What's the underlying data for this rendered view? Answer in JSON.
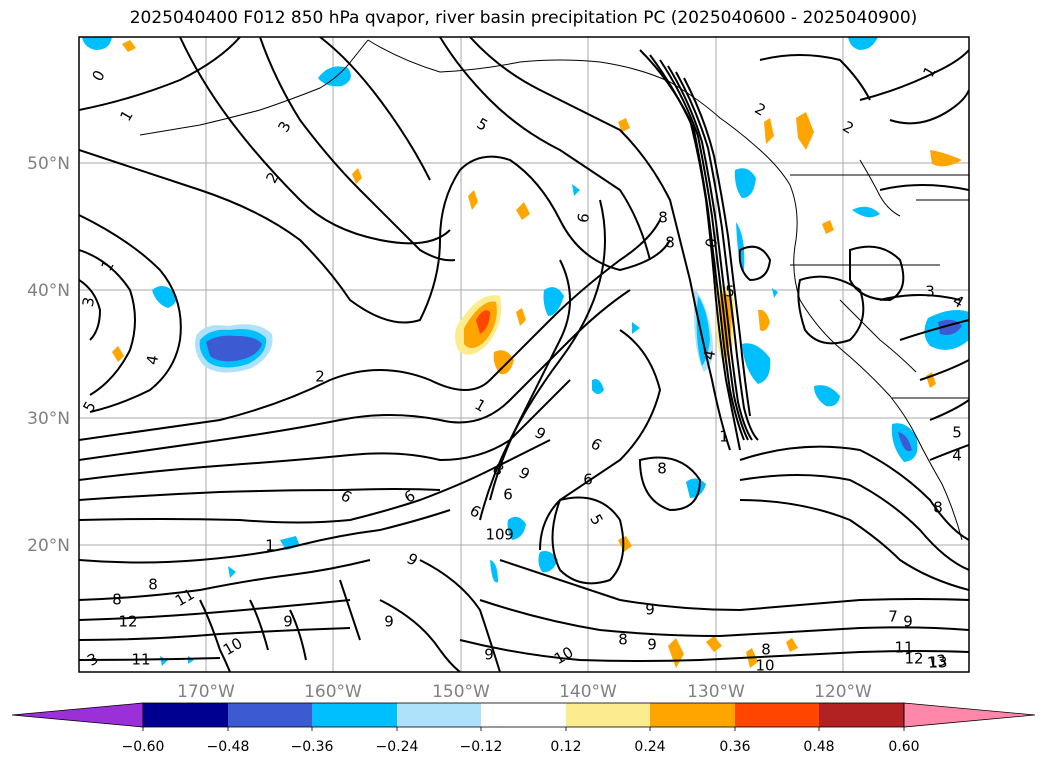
{
  "title": "2025040400 F012 850 hPa qvapor, river basin precipitation PC (2025040600 - 2025040900)",
  "map": {
    "lat_labels": [
      "50°N",
      "40°N",
      "30°N",
      "20°N"
    ],
    "lon_labels": [
      "170°W",
      "160°W",
      "150°W",
      "140°W",
      "130°W",
      "120°W"
    ],
    "contour_labels": [
      "0",
      "1",
      "3",
      "2",
      "5",
      "6",
      "8",
      "8",
      "0",
      "2",
      "2",
      "1",
      "1",
      "3",
      "4",
      "5",
      "2",
      "1",
      "4",
      "5",
      "3",
      "4",
      "8",
      "6",
      "6",
      "8",
      "5",
      "9",
      "9",
      "6",
      "6",
      "9",
      "10",
      "6",
      "9",
      "6",
      "9",
      "9",
      "9",
      "1",
      "11",
      "12",
      "8",
      "10",
      "11",
      "13",
      "9",
      "8",
      "9",
      "8",
      "10",
      "8",
      "10",
      "11",
      "12",
      "13",
      "9",
      "7",
      "1",
      "8",
      "3",
      "4",
      "5"
    ]
  },
  "colorbar": {
    "colors": [
      "#9b30d9",
      "#000090",
      "#3c5ad2",
      "#00bfff",
      "#aee2fa",
      "#ffffff",
      "#fcec8e",
      "#ffa500",
      "#ff4500",
      "#b22222",
      "#ff88aa"
    ],
    "ticks": [
      "−0.60",
      "−0.48",
      "−0.36",
      "−0.24",
      "−0.12",
      "0.12",
      "0.24",
      "0.36",
      "0.48",
      "0.60"
    ]
  }
}
